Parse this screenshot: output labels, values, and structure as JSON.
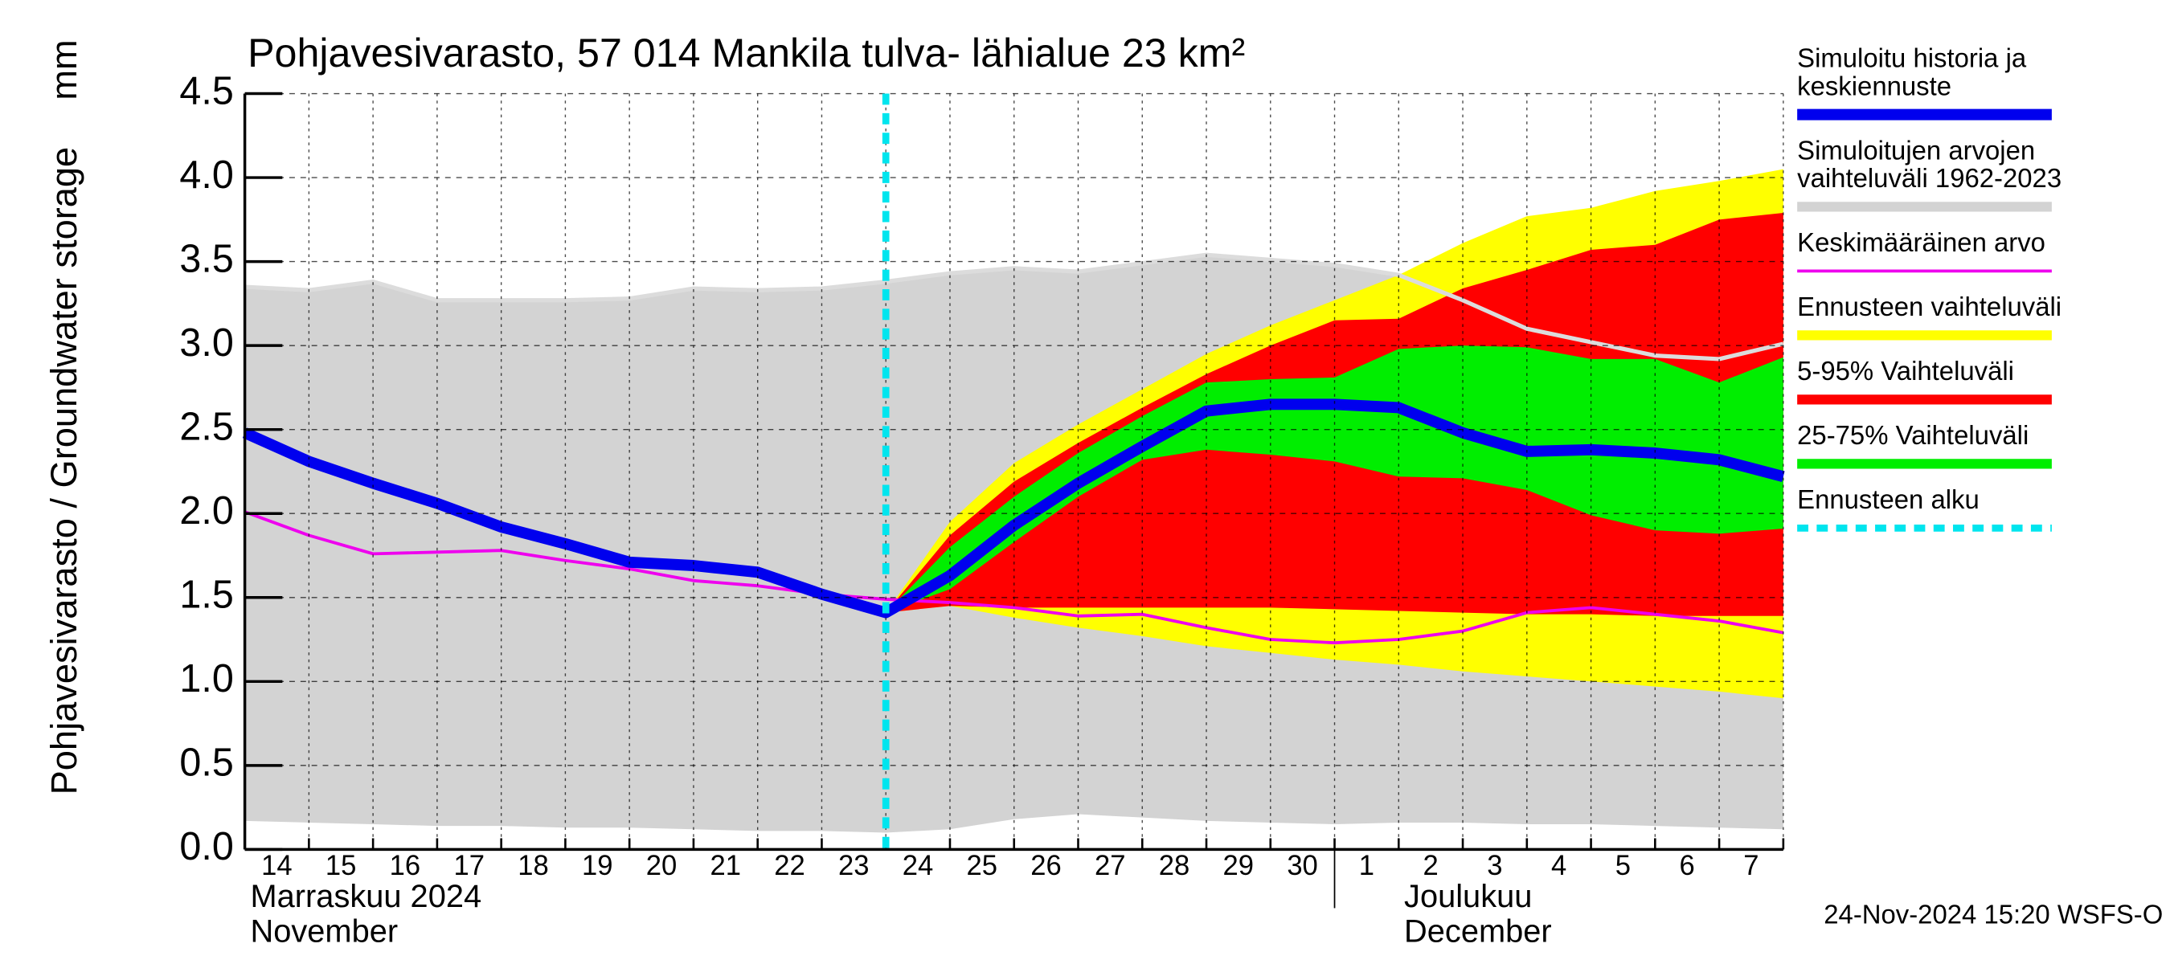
{
  "chart_data": {
    "type": "line",
    "title": "Pohjavesivarasto, 57 014 Mankila tulva- lähialue 23 km²",
    "ylabel": "Pohjavesivarasto / Groundwater storage",
    "yunit": "mm",
    "footer": "24-Nov-2024 15:20 WSFS-O",
    "xlim": [
      "2024-11-14",
      "2024-12-08"
    ],
    "ylim": [
      0,
      4.5
    ],
    "yticks": [
      {
        "value": 0,
        "label": "0.0"
      },
      0.5,
      {
        "value": 1,
        "label": "1.0"
      },
      1.5,
      {
        "value": 2,
        "label": "2.0"
      },
      2.5,
      {
        "value": 3,
        "label": "3.0"
      },
      3.5,
      {
        "value": 4,
        "label": "4.0"
      },
      4.5
    ],
    "grid": true,
    "day_labels": [
      "14",
      "15",
      "16",
      "17",
      "18",
      "19",
      "20",
      "21",
      "22",
      "23",
      "24",
      "25",
      "26",
      "27",
      "28",
      "29",
      "30",
      "1",
      "2",
      "3",
      "4",
      "5",
      "6",
      "7"
    ],
    "months": [
      {
        "start": "2024-11-14",
        "lines": [
          "Marraskuu 2024",
          "November"
        ]
      },
      {
        "start": "2024-12-01",
        "lines": [
          "Joulukuu",
          "December"
        ]
      }
    ],
    "x": [
      "2024-11-14",
      "2024-11-15",
      "2024-11-16",
      "2024-11-17",
      "2024-11-18",
      "2024-11-19",
      "2024-11-20",
      "2024-11-21",
      "2024-11-22",
      "2024-11-23",
      "2024-11-24",
      "2024-11-25",
      "2024-11-26",
      "2024-11-27",
      "2024-11-28",
      "2024-11-29",
      "2024-11-30",
      "2024-12-01",
      "2024-12-02",
      "2024-12-03",
      "2024-12-04",
      "2024-12-05",
      "2024-12-06",
      "2024-12-07",
      "2024-12-08"
    ],
    "series": [
      {
        "name": [
          "Simuloitu historia ja",
          "keskiennuste"
        ],
        "type": "line",
        "color": "#0000ee",
        "values": [
          2.48,
          2.31,
          2.18,
          2.06,
          1.92,
          1.82,
          1.71,
          1.69,
          1.65,
          1.52,
          1.41,
          1.63,
          1.93,
          2.18,
          2.4,
          2.61,
          2.65,
          2.65,
          2.63,
          2.48,
          2.37,
          2.38,
          2.36,
          2.32,
          2.22
        ]
      },
      {
        "name": [
          "Simuloitujen arvojen",
          "vaihteluväli 1962-2023"
        ],
        "type": "band",
        "color": "#d3d3d3",
        "upper": [
          3.35,
          3.33,
          3.38,
          3.27,
          3.27,
          3.27,
          3.28,
          3.34,
          3.33,
          3.34,
          3.38,
          3.43,
          3.46,
          3.44,
          3.49,
          3.54,
          3.51,
          3.48,
          3.42,
          3.27,
          3.1,
          3.02,
          2.94,
          2.92,
          3.01
        ],
        "lower": [
          0.17,
          0.16,
          0.15,
          0.14,
          0.14,
          0.13,
          0.13,
          0.12,
          0.11,
          0.11,
          0.1,
          0.12,
          0.18,
          0.21,
          0.19,
          0.17,
          0.16,
          0.15,
          0.16,
          0.16,
          0.15,
          0.15,
          0.14,
          0.13,
          0.12
        ]
      },
      {
        "name": [
          "Keskimääräinen arvo"
        ],
        "type": "line",
        "color": "#ee00ee",
        "values": [
          2.01,
          1.87,
          1.76,
          1.77,
          1.78,
          1.72,
          1.67,
          1.6,
          1.57,
          1.52,
          1.49,
          1.47,
          1.44,
          1.39,
          1.4,
          1.32,
          1.25,
          1.23,
          1.25,
          1.3,
          1.41,
          1.44,
          1.4,
          1.36,
          1.29
        ]
      },
      {
        "name": [
          "Ennusteen vaihteluväli"
        ],
        "type": "band",
        "color": "#ffff00",
        "upper": [
          null,
          null,
          null,
          null,
          null,
          null,
          null,
          null,
          null,
          null,
          1.41,
          1.95,
          2.3,
          2.53,
          2.74,
          2.95,
          3.12,
          3.27,
          3.42,
          3.61,
          3.77,
          3.82,
          3.92,
          3.98,
          4.05
        ],
        "lower": [
          null,
          null,
          null,
          null,
          null,
          null,
          null,
          null,
          null,
          null,
          1.41,
          1.45,
          1.38,
          1.32,
          1.27,
          1.21,
          1.17,
          1.13,
          1.1,
          1.06,
          1.03,
          1.0,
          0.97,
          0.94,
          0.9
        ]
      },
      {
        "name": [
          "5-95% Vaihteluväli"
        ],
        "type": "band",
        "color": "#ff0000",
        "upper": [
          null,
          null,
          null,
          null,
          null,
          null,
          null,
          null,
          null,
          null,
          1.41,
          1.87,
          2.19,
          2.42,
          2.63,
          2.83,
          3.0,
          3.15,
          3.16,
          3.34,
          3.45,
          3.57,
          3.6,
          3.75,
          3.79
        ],
        "lower": [
          null,
          null,
          null,
          null,
          null,
          null,
          null,
          null,
          null,
          null,
          1.41,
          1.45,
          1.44,
          1.44,
          1.44,
          1.44,
          1.44,
          1.43,
          1.42,
          1.41,
          1.4,
          1.4,
          1.39,
          1.39,
          1.39
        ]
      },
      {
        "name": [
          "25-75% Vaihteluväli"
        ],
        "type": "band",
        "color": "#00ee00",
        "upper": [
          null,
          null,
          null,
          null,
          null,
          null,
          null,
          null,
          null,
          null,
          1.41,
          1.8,
          2.1,
          2.36,
          2.58,
          2.78,
          2.8,
          2.81,
          2.98,
          3.0,
          2.99,
          2.92,
          2.92,
          2.78,
          2.93
        ],
        "lower": [
          null,
          null,
          null,
          null,
          null,
          null,
          null,
          null,
          null,
          null,
          1.41,
          1.55,
          1.83,
          2.1,
          2.32,
          2.38,
          2.35,
          2.31,
          2.22,
          2.21,
          2.14,
          1.99,
          1.9,
          1.88,
          1.91
        ]
      }
    ],
    "forecast_start": {
      "name": "Ennusteen alku",
      "color": "#00e5ee",
      "x": "2024-11-24"
    }
  }
}
